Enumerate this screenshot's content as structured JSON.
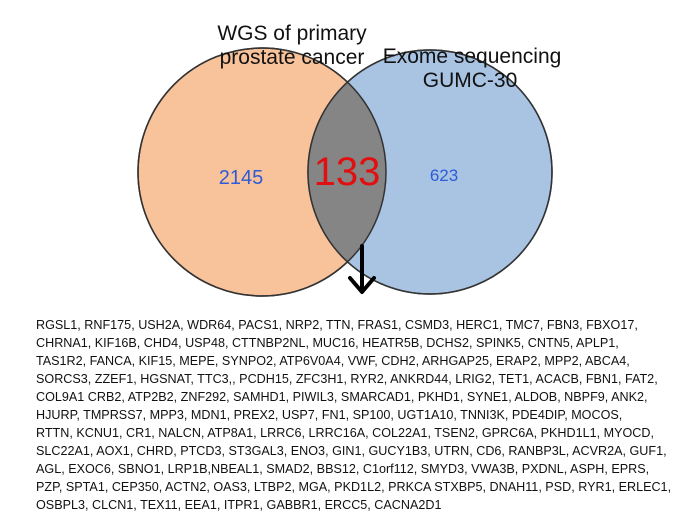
{
  "venn": {
    "left_set_label": [
      "WGS of primary",
      "prostate cancer"
    ],
    "right_set_label": [
      "Exome sequencing",
      "GUMC-30"
    ],
    "left_only_count": "2145",
    "intersection_count": "133",
    "right_only_count": "623",
    "colors": {
      "left_fill": "#f8c29a",
      "right_fill": "#a9c3e2",
      "overlap_fill": "#858585",
      "outline": "#333333",
      "count_side": "#2e5bd6",
      "count_center": "#e01010"
    },
    "arrow_icon": "arrow-down-icon"
  },
  "genes": [
    "RGSL1, RNF175, USH2A, WDR64, PACS1, NRP2, TTN, FRAS1, CSMD3, HERC1, TMC7, FBN3, FBXO17,",
    "CHRNA1, KIF16B, CHD4, USP48, CTTNBP2NL, MUC16, HEATR5B, DCHS2, SPINK5, CNTN5, APLP1,",
    "TAS1R2, FANCA, KIF15, MEPE, SYNPO2, ATP6V0A4, VWF, CDH2, ARHGAP25, ERAP2, MPP2, ABCA4,",
    "SORCS3, ZZEF1, HGSNAT, TTC3,, PCDH15, ZFC3H1, RYR2, ANKRD44, LRIG2, TET1, ACACB, FBN1, FAT2,",
    "COL9A1  CRB2, ATP2B2, ZNF292, SAMHD1, PIWIL3, SMARCAD1, PKHD1, SYNE1, ALDOB, NBPF9, ANK2,",
    "HJURP, TMPRSS7, MPP3, MDN1, PREX2, USP7, FN1, SP100, UGT1A10, TNNI3K, PDE4DIP, MOCOS,",
    "RTTN, KCNU1, CR1, NALCN, ATP8A1, LRRC6, LRRC16A, COL22A1, TSEN2, GPRC6A, PKHD1L1, MYOCD,",
    "SLC22A1, AOX1, CHRD, PTCD3, ST3GAL3, ENO3, GIN1, GUCY1B3, UTRN, CD6, RANBP3L, ACVR2A, GUF1,",
    "AGL, EXOC6, SBNO1, LRP1B,NBEAL1, SMAD2, BBS12, C1orf112, SMYD3, VWA3B, PXDNL, ASPH, EPRS,",
    "PZP, SPTA1, CEP350, ACTN2, OAS3, LTBP2, MGA, PKD1L2, PRKCA STXBP5, DNAH11, PSD, RYR1, ERLEC1,",
    "OSBPL3, CLCN1, TEX11, EEA1, ITPR1, GABBR1, ERCC5, CACNA2D1"
  ]
}
